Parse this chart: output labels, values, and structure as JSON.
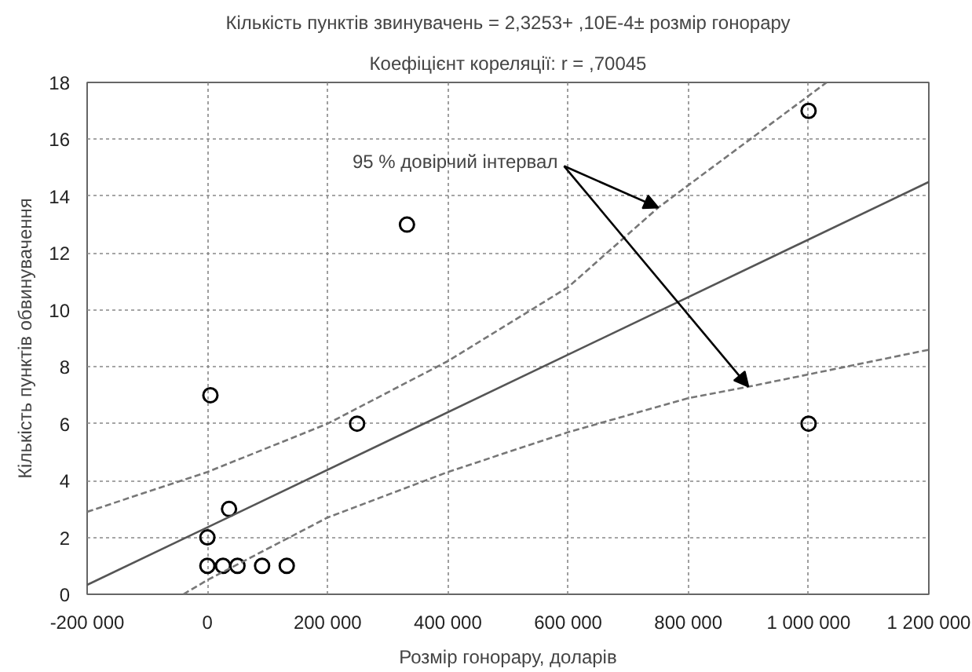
{
  "chart_data": {
    "type": "scatter",
    "title": "Кількість пунктів звинувачень = 2,3253+ ,10E-4± розмір гонорару",
    "subtitle": "Коефіцієнт кореляції: r = ,70045",
    "xlabel": "Розмір гонорару, доларів",
    "ylabel": "Кількість пунктів обвинувачення",
    "series": [
      {
        "marker": "circle",
        "color": "#000000",
        "x": [
          0,
          0,
          5000,
          26000,
          36000,
          50000,
          91000,
          132000,
          249000,
          332000,
          1000000,
          1000000
        ],
        "values": [
          2,
          1,
          7,
          1,
          3,
          1,
          1,
          1,
          6,
          13,
          17,
          6
        ]
      },
      {
        "type": "line",
        "color": "#555555",
        "line_style": "solid",
        "x": [
          -200000,
          1200000
        ],
        "values": [
          0.33,
          14.5
        ]
      },
      {
        "type": "line",
        "color": "#777777",
        "line_style": "dashed",
        "x": [
          -200000,
          0,
          200000,
          400000,
          600000,
          750000,
          1030000
        ],
        "values": [
          2.9,
          4.3,
          6.0,
          8.2,
          10.8,
          13.6,
          18
        ]
      },
      {
        "type": "line",
        "color": "#777777",
        "line_style": "dashed",
        "x": [
          -40000,
          0,
          200000,
          400000,
          600000,
          800000,
          900000,
          1200000
        ],
        "values": [
          0,
          0.5,
          2.7,
          4.3,
          5.7,
          6.9,
          7.3,
          8.6
        ]
      }
    ],
    "annotations": [
      {
        "text": "95 % довірчий інтервал",
        "x": 750000,
        "y": 13.6
      }
    ],
    "xlim": [
      -200000,
      1200000
    ],
    "xticks": [
      {
        "value": -200000,
        "label": "-200 000"
      },
      0,
      {
        "value": 200000,
        "label": "200 000"
      },
      {
        "value": 400000,
        "label": "400 000"
      },
      {
        "value": 600000,
        "label": "600 000"
      },
      {
        "value": 800000,
        "label": "800 000"
      },
      {
        "value": 1000000,
        "label": "1 000 000"
      },
      {
        "value": 1200000,
        "label": "1 200 000"
      }
    ],
    "ylim": [
      0,
      18
    ],
    "yticks": [
      0,
      2,
      4,
      6,
      8,
      10,
      12,
      14,
      16,
      18
    ],
    "grid": true
  }
}
